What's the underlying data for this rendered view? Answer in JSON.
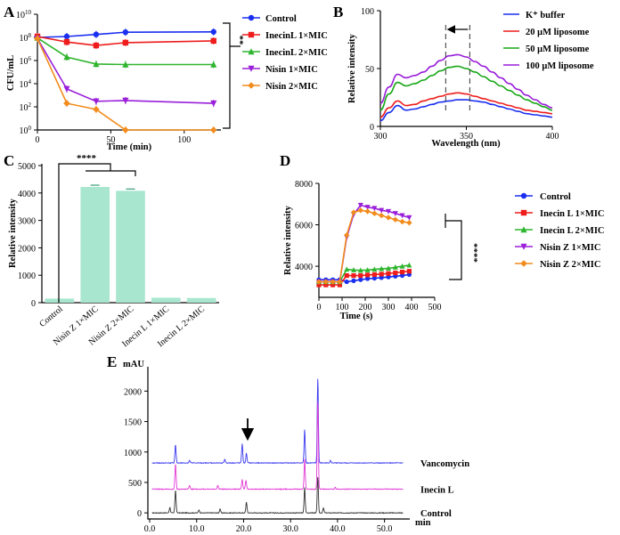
{
  "figure": {
    "panel_letters": [
      "A",
      "B",
      "C",
      "D",
      "E"
    ]
  },
  "chart_data": [
    {
      "panel": "A",
      "type": "line",
      "scale": "log",
      "xlabel": "Time (min)",
      "ylabel": "CFU/mL",
      "x": [
        0,
        20,
        40,
        60,
        120
      ],
      "xlim": [
        0,
        125
      ],
      "xticks": [
        0,
        50,
        100
      ],
      "ylim": [
        1,
        10000000000
      ],
      "ytick_labels": [
        "10",
        "10",
        "10",
        "10",
        "10",
        "10"
      ],
      "ytick_exponents": [
        "0",
        "2",
        "4",
        "6",
        "8",
        "10"
      ],
      "significance": "**",
      "series": [
        {
          "name": "Control",
          "color": "#1a2ff0",
          "marker": "circle",
          "values": [
            100000000,
            120000000,
            180000000,
            280000000,
            300000000
          ]
        },
        {
          "name": "InecinL 1×MIC",
          "color": "#ee1c1c",
          "marker": "square",
          "values": [
            120000000,
            40000000,
            20000000,
            35000000,
            50000000
          ]
        },
        {
          "name": "InecinL 2×MIC",
          "color": "#2fb52f",
          "marker": "triangle-up",
          "values": [
            90000000,
            2000000,
            500000,
            450000,
            450000
          ]
        },
        {
          "name": "Nisin 1×MIC",
          "color": "#9a1fd9",
          "marker": "triangle-down",
          "values": [
            80000000,
            3500,
            300,
            350,
            200
          ]
        },
        {
          "name": "Nisin 2×MIC",
          "color": "#f28c1c",
          "marker": "diamond",
          "values": [
            80000000,
            200,
            60,
            1,
            1
          ]
        }
      ]
    },
    {
      "panel": "B",
      "type": "line",
      "xlabel": "Wavelength (nm)",
      "ylabel": "Relative intensity",
      "xlim": [
        300,
        400
      ],
      "xticks": [
        300,
        350,
        400
      ],
      "ylim": [
        0,
        100
      ],
      "yticks": [
        0,
        50,
        100
      ],
      "x": [
        300,
        305,
        310,
        315,
        320,
        325,
        330,
        335,
        340,
        345,
        350,
        355,
        360,
        365,
        370,
        375,
        380,
        385,
        390,
        395,
        400
      ],
      "markers_dashed_x": [
        338,
        352
      ],
      "arrow": "shift from 352 to 338 nm",
      "series": [
        {
          "name": "K⁺ buffer",
          "color": "#1a2ff0",
          "values": [
            5,
            12,
            18,
            14,
            15,
            17,
            19,
            21,
            22,
            23,
            23,
            22,
            21,
            19,
            17,
            15,
            13,
            11,
            10,
            9,
            8
          ]
        },
        {
          "name": "20 μM liposome",
          "color": "#ee1c1c",
          "values": [
            8,
            16,
            22,
            18,
            19,
            22,
            24,
            26,
            28,
            29,
            28,
            26,
            24,
            22,
            20,
            18,
            16,
            14,
            13,
            12,
            11
          ]
        },
        {
          "name": "50 μM liposome",
          "color": "#17a817",
          "values": [
            14,
            28,
            38,
            35,
            37,
            40,
            44,
            48,
            51,
            52,
            50,
            47,
            43,
            39,
            35,
            31,
            27,
            23,
            20,
            17,
            14
          ]
        },
        {
          "name": "100 μM liposome",
          "color": "#9a1fd9",
          "values": [
            20,
            34,
            45,
            42,
            44,
            47,
            52,
            57,
            61,
            62,
            60,
            56,
            52,
            47,
            42,
            37,
            32,
            27,
            23,
            19,
            16
          ]
        }
      ]
    },
    {
      "panel": "C",
      "type": "bar",
      "ylabel": "Relative intensity",
      "ylim": [
        0,
        5000
      ],
      "yticks": [
        0,
        1000,
        2000,
        3000,
        4000,
        5000
      ],
      "bar_color": "#a8e6cf",
      "categories": [
        "Control",
        "Nisin Z 1×MIC",
        "Nisin Z 2×MIC",
        "Inecin L 1×MIC",
        "Inecin L 2×MIC"
      ],
      "values": [
        150,
        4220,
        4080,
        180,
        170
      ],
      "significance": "****"
    },
    {
      "panel": "D",
      "type": "line",
      "xlabel": "Time (s)",
      "ylabel": "Relative intensity",
      "xlim": [
        0,
        500
      ],
      "xticks": [
        0,
        100,
        200,
        300,
        400,
        500
      ],
      "ylim": [
        2500,
        8000
      ],
      "yticks": [
        4000,
        6000,
        8000
      ],
      "x": [
        0,
        30,
        60,
        90,
        120,
        150,
        180,
        210,
        240,
        270,
        300,
        330,
        360,
        390
      ],
      "significance": "****",
      "series": [
        {
          "name": "Control",
          "color": "#1a2ff0",
          "marker": "circle",
          "values": [
            3350,
            3350,
            3350,
            3350,
            3250,
            3300,
            3350,
            3400,
            3420,
            3450,
            3480,
            3520,
            3550,
            3600
          ]
        },
        {
          "name": "Inecin L 1×MIC",
          "color": "#ee1c1c",
          "marker": "square",
          "values": [
            3100,
            3100,
            3100,
            3100,
            3550,
            3550,
            3550,
            3580,
            3600,
            3620,
            3650,
            3680,
            3720,
            3760
          ]
        },
        {
          "name": "Inecin L 2×MIC",
          "color": "#2fb52f",
          "marker": "triangle-up",
          "values": [
            3250,
            3250,
            3250,
            3250,
            3850,
            3820,
            3800,
            3820,
            3850,
            3880,
            3900,
            3950,
            4000,
            4050
          ]
        },
        {
          "name": "Nisin Z 1×MIC",
          "color": "#9a1fd9",
          "marker": "triangle-down",
          "values": [
            3250,
            3250,
            3250,
            3250,
            5400,
            6500,
            6950,
            6850,
            6800,
            6700,
            6650,
            6550,
            6450,
            6350
          ]
        },
        {
          "name": "Nisin Z 2×MIC",
          "color": "#f28c1c",
          "marker": "diamond",
          "values": [
            3250,
            3250,
            3250,
            3250,
            5500,
            6600,
            6700,
            6650,
            6550,
            6450,
            6350,
            6250,
            6150,
            6100
          ]
        }
      ]
    },
    {
      "panel": "E",
      "type": "line",
      "xlabel": "min",
      "ylabel": "mAU",
      "xlim": [
        0,
        55
      ],
      "xticks": [
        0,
        10,
        20,
        30,
        40,
        50
      ],
      "xtick_labels": [
        "0.0",
        "10.0",
        "20.0",
        "30.0",
        "40.0",
        "50.0"
      ],
      "ylim": [
        -100,
        2400
      ],
      "yticks": [
        0,
        500,
        1000,
        1500,
        2000
      ],
      "arrow_at_min": 20,
      "series": [
        {
          "name": "Vancomycin",
          "color": "#3a3aef",
          "baseline": 820,
          "peaks": [
            [
              5.5,
              300
            ],
            [
              8.5,
              40
            ],
            [
              16,
              60
            ],
            [
              19.7,
              320
            ],
            [
              20.6,
              160
            ],
            [
              33.0,
              550
            ],
            [
              35.8,
              1400
            ],
            [
              38.5,
              40
            ]
          ]
        },
        {
          "name": "Inecin L",
          "color": "#e23ad6",
          "baseline": 390,
          "peaks": [
            [
              5.5,
              420
            ],
            [
              8.5,
              60
            ],
            [
              14.5,
              60
            ],
            [
              19.7,
              160
            ],
            [
              20.5,
              150
            ],
            [
              33.0,
              500
            ],
            [
              35.8,
              1450
            ],
            [
              39.5,
              30
            ]
          ]
        },
        {
          "name": "Control",
          "color": "#333333",
          "baseline": 0,
          "peaks": [
            [
              4.3,
              90
            ],
            [
              5.5,
              380
            ],
            [
              10.5,
              50
            ],
            [
              15,
              60
            ],
            [
              20.6,
              180
            ],
            [
              33.0,
              420
            ],
            [
              35.8,
              600
            ],
            [
              37,
              80
            ]
          ]
        }
      ]
    }
  ]
}
